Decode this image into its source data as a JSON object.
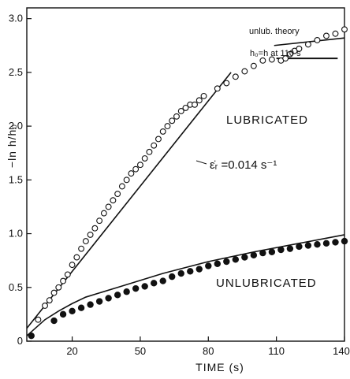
{
  "chart_data": {
    "type": "scatter",
    "xlabel": "TIME (s)",
    "ylabel": "−ln h/h₀",
    "xlim": [
      0,
      140
    ],
    "ylim": [
      0,
      3.1
    ],
    "x_ticks": [
      20,
      50,
      80,
      110,
      140
    ],
    "y_ticks": [
      0,
      0.5,
      1.0,
      1.5,
      2.0,
      2.5,
      3.0
    ],
    "x_tick_labels": [
      "20",
      "50",
      "80",
      "110",
      "140"
    ],
    "y_tick_labels": [
      "0",
      "0.5",
      "1.0",
      "1.5",
      "2.0",
      "2.5",
      "3.0"
    ],
    "grid": false,
    "series": [
      {
        "name": "LUBRICATED",
        "marker": "open-circle",
        "x": [
          5,
          8,
          10,
          12,
          14,
          16,
          18,
          20,
          22,
          24,
          26,
          28,
          30,
          32,
          34,
          36,
          38,
          40,
          42,
          44,
          46,
          48,
          50,
          52,
          54,
          56,
          58,
          60,
          62,
          64,
          66,
          68,
          70,
          72,
          74,
          76,
          78,
          84,
          88,
          92,
          96,
          100,
          104,
          108,
          112,
          114,
          116,
          118,
          120,
          124,
          128,
          132,
          136,
          140
        ],
        "y": [
          0.2,
          0.33,
          0.38,
          0.45,
          0.5,
          0.56,
          0.62,
          0.71,
          0.78,
          0.86,
          0.93,
          0.99,
          1.05,
          1.12,
          1.19,
          1.25,
          1.31,
          1.37,
          1.44,
          1.5,
          1.56,
          1.6,
          1.64,
          1.7,
          1.76,
          1.82,
          1.88,
          1.95,
          2.0,
          2.05,
          2.09,
          2.14,
          2.17,
          2.2,
          2.2,
          2.24,
          2.28,
          2.35,
          2.4,
          2.46,
          2.51,
          2.56,
          2.61,
          2.62,
          2.61,
          2.63,
          2.67,
          2.7,
          2.72,
          2.76,
          2.8,
          2.84,
          2.86,
          2.9
        ]
      },
      {
        "name": "UNLUBRICATED",
        "marker": "filled-circle",
        "x": [
          2,
          12,
          16,
          20,
          24,
          28,
          32,
          36,
          40,
          44,
          48,
          52,
          56,
          60,
          64,
          68,
          72,
          76,
          80,
          84,
          88,
          92,
          96,
          100,
          104,
          108,
          112,
          116,
          120,
          124,
          128,
          132,
          136,
          140
        ],
        "y": [
          0.05,
          0.19,
          0.25,
          0.28,
          0.31,
          0.34,
          0.37,
          0.4,
          0.43,
          0.46,
          0.49,
          0.51,
          0.54,
          0.56,
          0.6,
          0.63,
          0.65,
          0.67,
          0.7,
          0.72,
          0.74,
          0.76,
          0.78,
          0.8,
          0.82,
          0.83,
          0.85,
          0.86,
          0.88,
          0.89,
          0.9,
          0.91,
          0.92,
          0.93
        ]
      }
    ],
    "lines": [
      {
        "x": [
          0,
          90
        ],
        "y": [
          0.12,
          2.5
        ]
      },
      {
        "x": [
          0,
          8,
          14,
          20,
          26,
          40,
          60,
          80,
          100,
          120,
          140
        ],
        "y": [
          0.05,
          0.2,
          0.28,
          0.35,
          0.41,
          0.5,
          0.63,
          0.74,
          0.83,
          0.91,
          0.99
        ]
      },
      {
        "x": [
          110,
          137
        ],
        "y": [
          2.63,
          2.63
        ]
      },
      {
        "x": [
          109,
          140
        ],
        "y": [
          2.75,
          2.82
        ]
      }
    ],
    "annotations": [
      {
        "text": "LUBRICATED"
      },
      {
        "text": "UNLUBRICATED"
      },
      {
        "text": "unlub. theory"
      },
      {
        "text": "h₀=h at 110 s"
      },
      {
        "text": "ε̇ᵣ =0.014 s⁻¹"
      }
    ]
  }
}
